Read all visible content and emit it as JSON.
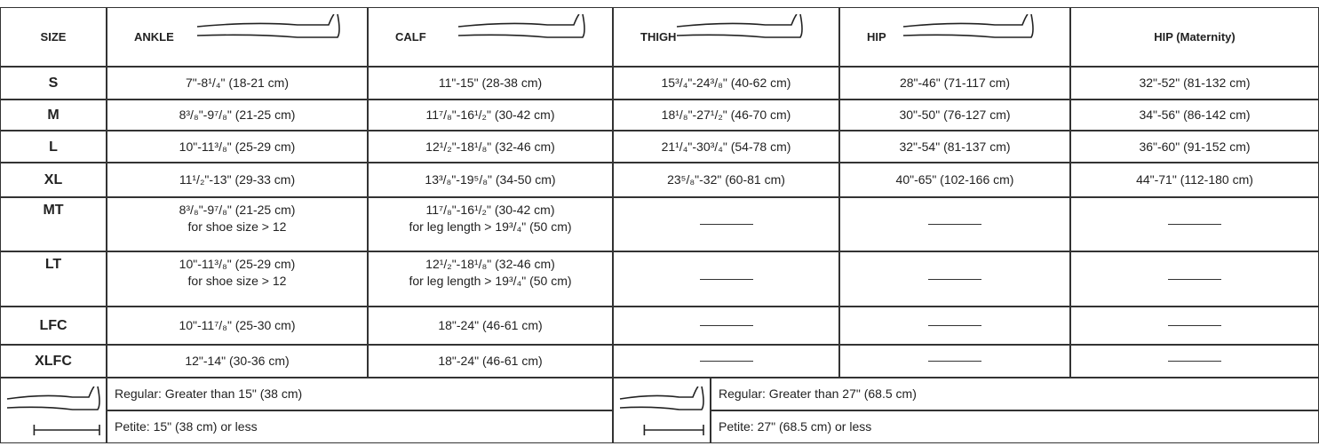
{
  "table": {
    "header": [
      "SIZE",
      "ANKLE",
      "CALF",
      "THIGH",
      "HIP",
      "HIP (Maternity)"
    ],
    "rows": [
      [
        "S",
        "7\"-8¹/₄\" (18-21 cm)",
        "11\"-15\" (28-38 cm)",
        "15³/₄\"-24³/₈\" (40-62 cm)",
        "28\"-46\" (71-117 cm)",
        "32\"-52\" (81-132 cm)"
      ],
      [
        "M",
        "8³/₈\"-9⁷/₈\" (21-25 cm)",
        "11⁷/₈\"-16¹/₂\" (30-42 cm)",
        "18¹/₈\"-27¹/₂\" (46-70 cm)",
        "30\"-50\" (76-127 cm)",
        "34\"-56\" (86-142 cm)"
      ],
      [
        "L",
        "10\"-11³/₈\" (25-29 cm)",
        "12¹/₂\"-18¹/₈\" (32-46 cm)",
        "21¹/₄\"-30³/₄\" (54-78 cm)",
        "32\"-54\" (81-137 cm)",
        "36\"-60\" (91-152 cm)"
      ],
      [
        "XL",
        "11¹/₂\"-13\" (29-33 cm)",
        "13³/₈\"-19⁵/₈\" (34-50 cm)",
        "23⁵/₈\"-32\" (60-81 cm)",
        "40\"-65\" (102-166 cm)",
        "44\"-71\" (112-180 cm)"
      ],
      [
        "MT",
        [
          "8³/₈\"-9⁷/₈\" (21-25 cm)",
          "for shoe size > 12"
        ],
        [
          "11⁷/₈\"-16¹/₂\" (30-42 cm)",
          "for leg length > 19³/₄\" (50 cm)"
        ],
        null,
        null,
        null
      ],
      [
        "LT",
        [
          "10\"-11³/₈\" (25-29 cm)",
          "for shoe size > 12"
        ],
        [
          "12¹/₂\"-18¹/₈\" (32-46 cm)",
          "for leg length > 19³/₄\" (50 cm)"
        ],
        null,
        null,
        null
      ],
      [
        "LFC",
        "10\"-11⁷/₈\" (25-30 cm)",
        "18\"-24\" (46-61 cm)",
        null,
        null,
        null
      ],
      [
        "XLFC",
        "12\"-14\" (30-36 cm)",
        "18\"-24\" (46-61 cm)",
        null,
        null,
        null
      ]
    ]
  },
  "footer": {
    "left": {
      "regular": "Regular: Greater than 15\" (38 cm)",
      "petite": "Petite: 15\" (38 cm) or less"
    },
    "right": {
      "regular": "Regular: Greater than 27\" (68.5 cm)",
      "petite": "Petite: 27\" (68.5 cm) or less"
    }
  }
}
